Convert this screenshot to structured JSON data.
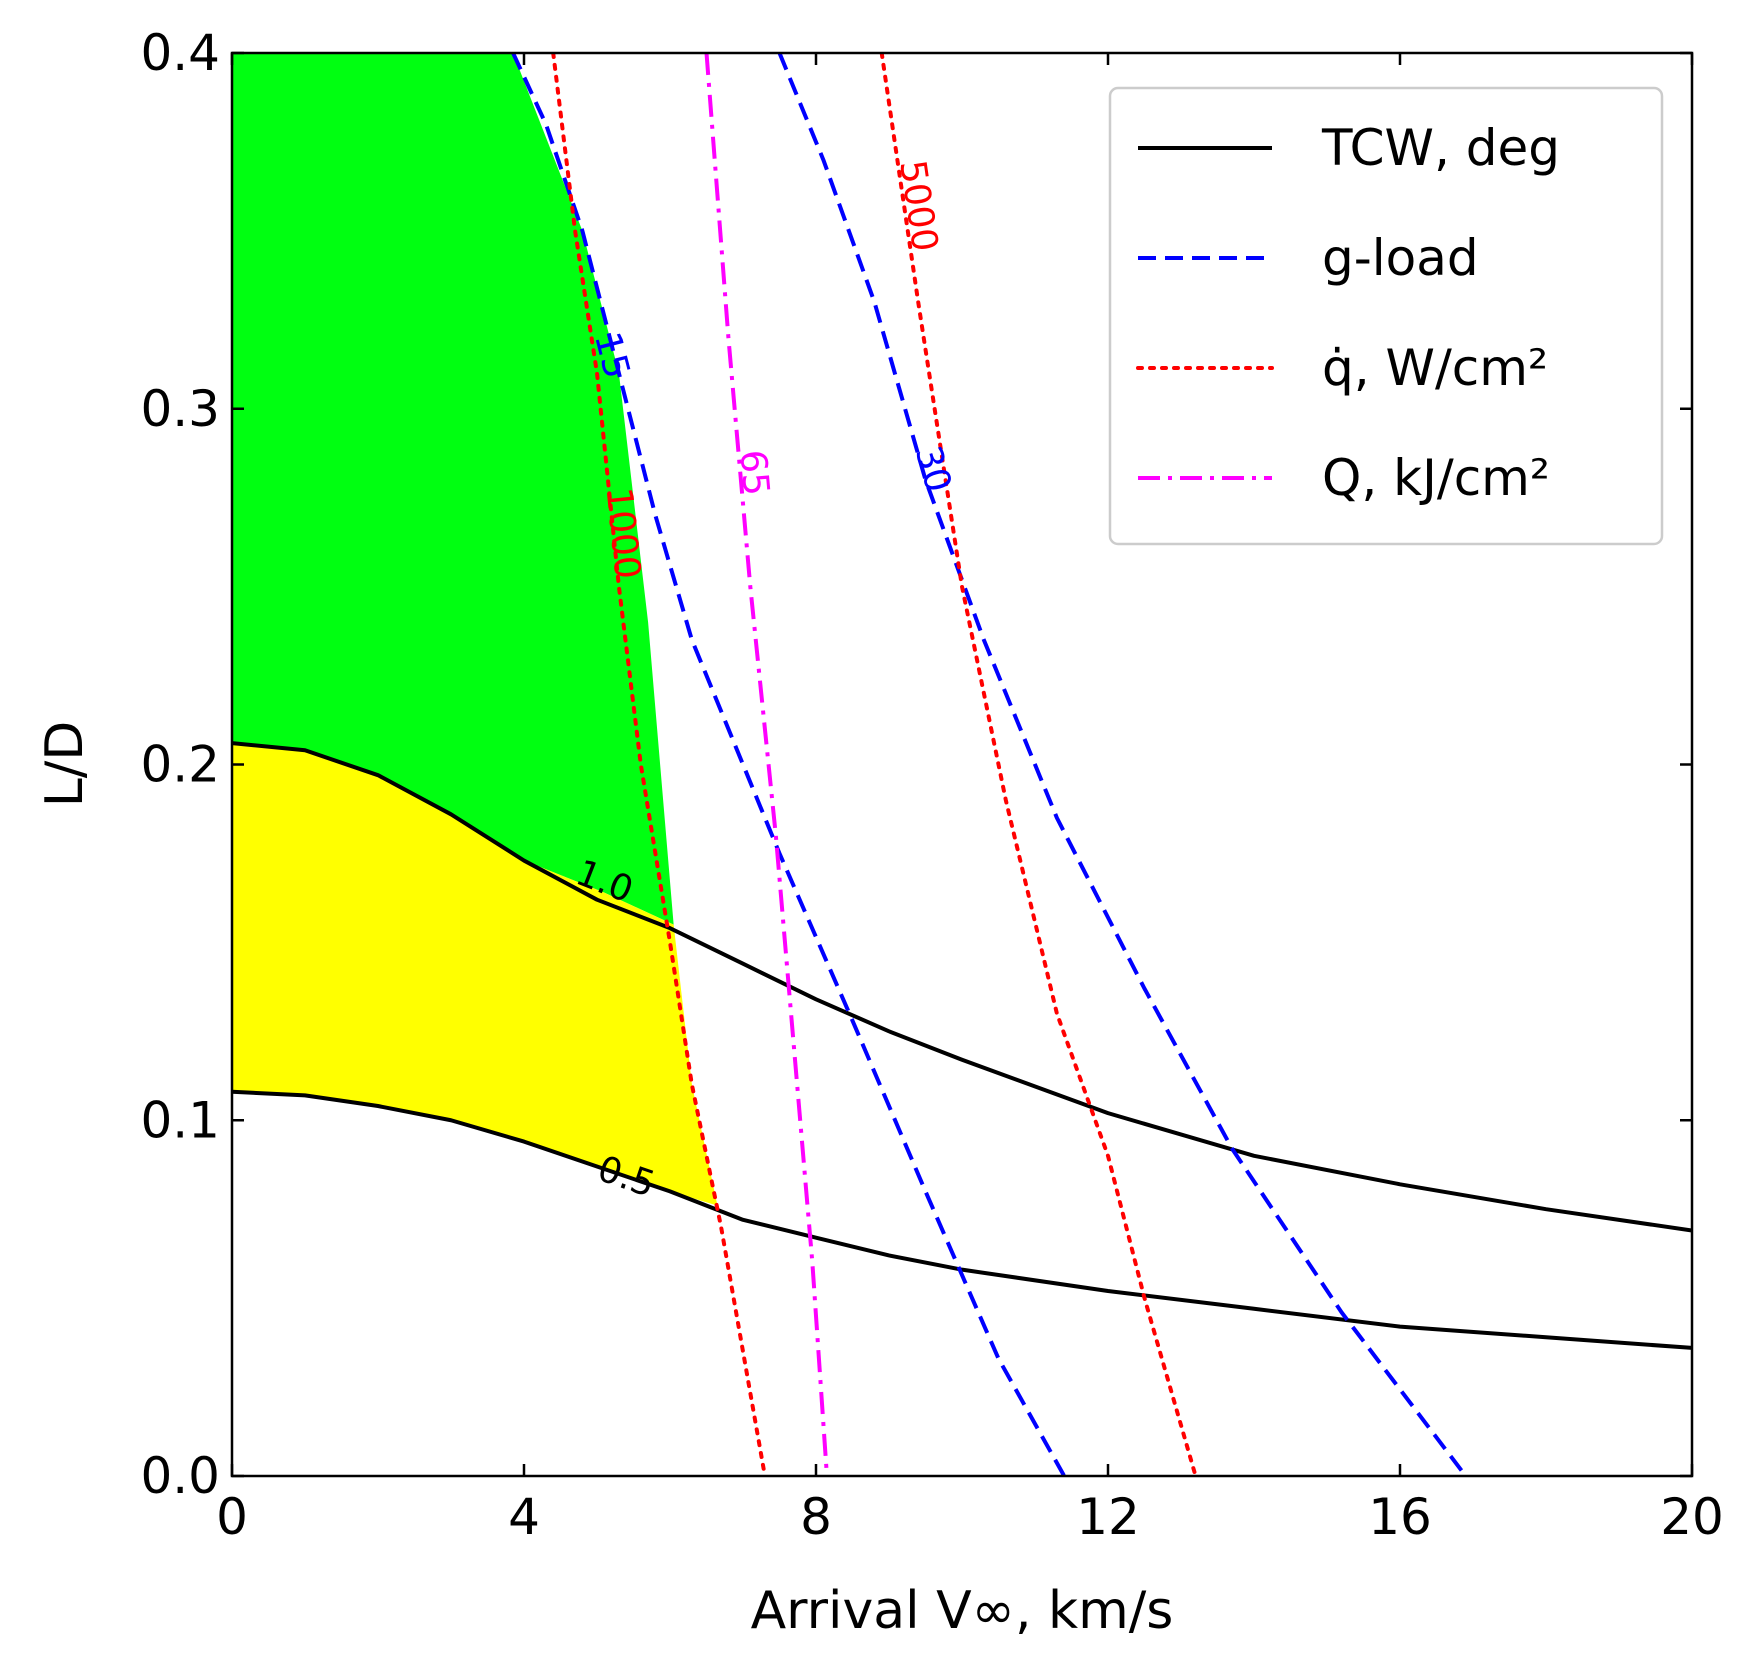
{
  "chart_data": {
    "type": "line",
    "xlabel": "Arrival V∞, km/s",
    "ylabel": "L/D",
    "xlim": [
      0,
      20
    ],
    "ylim": [
      0,
      0.4
    ],
    "xticks": [
      "0",
      "4",
      "8",
      "12",
      "16",
      "20"
    ],
    "yticks": [
      "0.0",
      "0.1",
      "0.2",
      "0.3",
      "0.4"
    ],
    "grid": false,
    "legend_position": "top-right",
    "legend": [
      {
        "label": "TCW, deg",
        "color": "#000000",
        "style": "solid"
      },
      {
        "label": "g-load",
        "color": "#0000ff",
        "style": "dashed"
      },
      {
        "label": "q̇, W/cm²",
        "color": "#ff0000",
        "style": "dotted"
      },
      {
        "label": "Q, kJ/cm²",
        "color": "#ff00ff",
        "style": "dashdot"
      }
    ],
    "series": [
      {
        "group": "TCW, deg",
        "contour": "1.0",
        "color": "#000000",
        "style": "solid",
        "x": [
          0,
          1,
          2,
          3,
          4,
          5,
          6,
          7,
          8,
          9,
          10,
          12,
          14,
          16,
          18,
          20
        ],
        "y": [
          0.206,
          0.204,
          0.197,
          0.186,
          0.173,
          0.162,
          0.154,
          0.144,
          0.134,
          0.125,
          0.117,
          0.102,
          0.09,
          0.082,
          0.075,
          0.069
        ]
      },
      {
        "group": "TCW, deg",
        "contour": "0.5",
        "color": "#000000",
        "style": "solid",
        "x": [
          0,
          1,
          2,
          3,
          4,
          5,
          6,
          7,
          8,
          9,
          10,
          12,
          14,
          16,
          18,
          20
        ],
        "y": [
          0.108,
          0.107,
          0.104,
          0.1,
          0.094,
          0.087,
          0.08,
          0.072,
          0.067,
          0.062,
          0.058,
          0.052,
          0.047,
          0.042,
          0.039,
          0.036
        ]
      },
      {
        "group": "g-load",
        "contour": "15",
        "color": "#0000ff",
        "style": "dashed",
        "x": [
          3.85,
          4.3,
          4.8,
          5.3,
          5.8,
          6.3,
          6.9,
          7.5,
          8.5,
          9.5,
          10.5,
          11.4
        ],
        "y": [
          0.4,
          0.38,
          0.35,
          0.31,
          0.27,
          0.235,
          0.205,
          0.175,
          0.128,
          0.08,
          0.033,
          0.0
        ]
      },
      {
        "group": "g-load",
        "contour": "30",
        "color": "#0000ff",
        "style": "dashed",
        "x": [
          7.5,
          8.1,
          8.8,
          9.5,
          10.3,
          11.3,
          12.5,
          13.7,
          15.2,
          16.9
        ],
        "y": [
          0.4,
          0.37,
          0.33,
          0.28,
          0.235,
          0.185,
          0.137,
          0.092,
          0.046,
          0.0
        ]
      },
      {
        "group": "q̇, W/cm²",
        "contour": "1000",
        "color": "#ff0000",
        "style": "dotted",
        "x": [
          4.4,
          4.7,
          5.0,
          5.3,
          5.6,
          6.0,
          6.3,
          6.7,
          7.3
        ],
        "y": [
          0.4,
          0.35,
          0.31,
          0.25,
          0.2,
          0.15,
          0.11,
          0.07,
          0.0
        ]
      },
      {
        "group": "q̇, W/cm²",
        "contour": "5000",
        "color": "#ff0000",
        "style": "dotted",
        "x": [
          8.9,
          9.4,
          10.0,
          10.6,
          11.3,
          12.0,
          12.5,
          13.2
        ],
        "y": [
          0.4,
          0.33,
          0.25,
          0.19,
          0.13,
          0.09,
          0.05,
          0.0
        ]
      },
      {
        "group": "Q, kJ/cm²",
        "contour": "65",
        "color": "#ff00ff",
        "style": "dashdot",
        "x": [
          6.5,
          6.8,
          7.1,
          7.45,
          7.7,
          7.95,
          8.15
        ],
        "y": [
          0.4,
          0.32,
          0.25,
          0.18,
          0.12,
          0.06,
          0.0
        ]
      }
    ],
    "contour_labels": [
      {
        "text": "1.0",
        "color": "#000000",
        "x": 5.1,
        "y": 0.167
      },
      {
        "text": "0.5",
        "color": "#000000",
        "x": 5.4,
        "y": 0.084
      },
      {
        "text": "15",
        "color": "#0000ff",
        "x": 5.2,
        "y": 0.315
      },
      {
        "text": "30",
        "color": "#0000ff",
        "x": 9.6,
        "y": 0.283
      },
      {
        "text": "1000",
        "color": "#ff0000",
        "x": 5.35,
        "y": 0.265
      },
      {
        "text": "5000",
        "color": "#ff0000",
        "x": 9.4,
        "y": 0.357
      },
      {
        "text": "65",
        "color": "#ff00ff",
        "x": 7.15,
        "y": 0.282
      }
    ],
    "regions": [
      {
        "color": "#00ff11",
        "x": [
          0,
          3.85,
          4.8,
          5.3,
          5.7,
          6.05,
          5.1,
          4,
          3,
          2,
          1,
          0
        ],
        "y": [
          0.4,
          0.4,
          0.35,
          0.31,
          0.24,
          0.155,
          0.164,
          0.173,
          0.186,
          0.197,
          0.204,
          0.206
        ]
      },
      {
        "color": "#ffff00",
        "x": [
          0,
          1,
          2,
          3,
          4,
          5.1,
          6.05,
          6.3,
          6.65,
          6,
          5,
          4,
          3,
          2,
          1,
          0
        ],
        "y": [
          0.206,
          0.204,
          0.197,
          0.186,
          0.173,
          0.164,
          0.155,
          0.11,
          0.076,
          0.08,
          0.087,
          0.094,
          0.1,
          0.104,
          0.107,
          0.108
        ]
      }
    ]
  }
}
